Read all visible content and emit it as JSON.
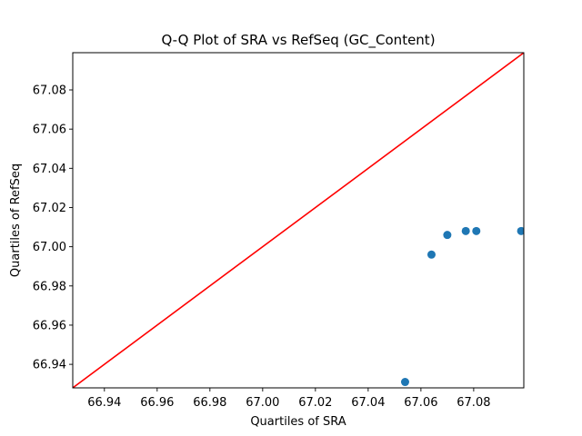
{
  "chart_data": {
    "type": "scatter",
    "title": "Q-Q Plot of SRA vs RefSeq (GC_Content)",
    "xlabel": "Quartiles of SRA",
    "ylabel": "Quartiles of RefSeq",
    "xlim": [
      66.928,
      67.099
    ],
    "ylim": [
      66.928,
      67.099
    ],
    "xticks": [
      "66.94",
      "66.96",
      "66.98",
      "67.00",
      "67.02",
      "67.04",
      "67.06",
      "67.08"
    ],
    "yticks": [
      "66.94",
      "66.96",
      "66.98",
      "67.00",
      "67.02",
      "67.04",
      "67.06",
      "67.08"
    ],
    "grid": false,
    "points": [
      {
        "x": 67.054,
        "y": 66.931
      },
      {
        "x": 67.064,
        "y": 66.996
      },
      {
        "x": 67.07,
        "y": 67.006
      },
      {
        "x": 67.077,
        "y": 67.008
      },
      {
        "x": 67.081,
        "y": 67.008
      },
      {
        "x": 67.098,
        "y": 67.008
      }
    ],
    "reference_line": {
      "type": "y=x",
      "color": "#ff0000"
    },
    "marker_color": "#1f77b4"
  }
}
